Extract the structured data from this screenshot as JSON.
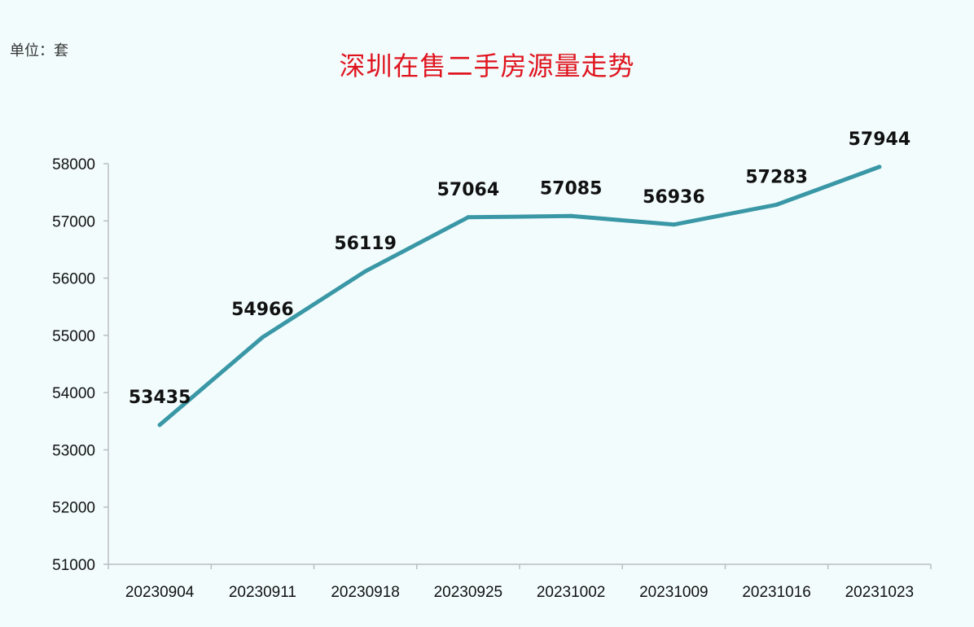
{
  "unit_label": "单位：套",
  "chart_data": {
    "type": "line",
    "title": "深圳在售二手房源量走势",
    "xlabel": "",
    "ylabel": "",
    "categories": [
      "20230904",
      "20230911",
      "20230918",
      "20230925",
      "20231002",
      "20231009",
      "20231016",
      "20231023"
    ],
    "series": [
      {
        "values": [
          53435,
          54966,
          56119,
          57064,
          57085,
          56936,
          57283,
          57944
        ],
        "color": "#3a97a6"
      }
    ],
    "ylim": [
      51000,
      58000
    ],
    "yticks": [
      51000,
      52000,
      53000,
      54000,
      55000,
      56000,
      57000,
      58000
    ],
    "grid": false,
    "legend": "none",
    "title_color": "#e0141e",
    "axis_color": "#b9bfc2"
  }
}
